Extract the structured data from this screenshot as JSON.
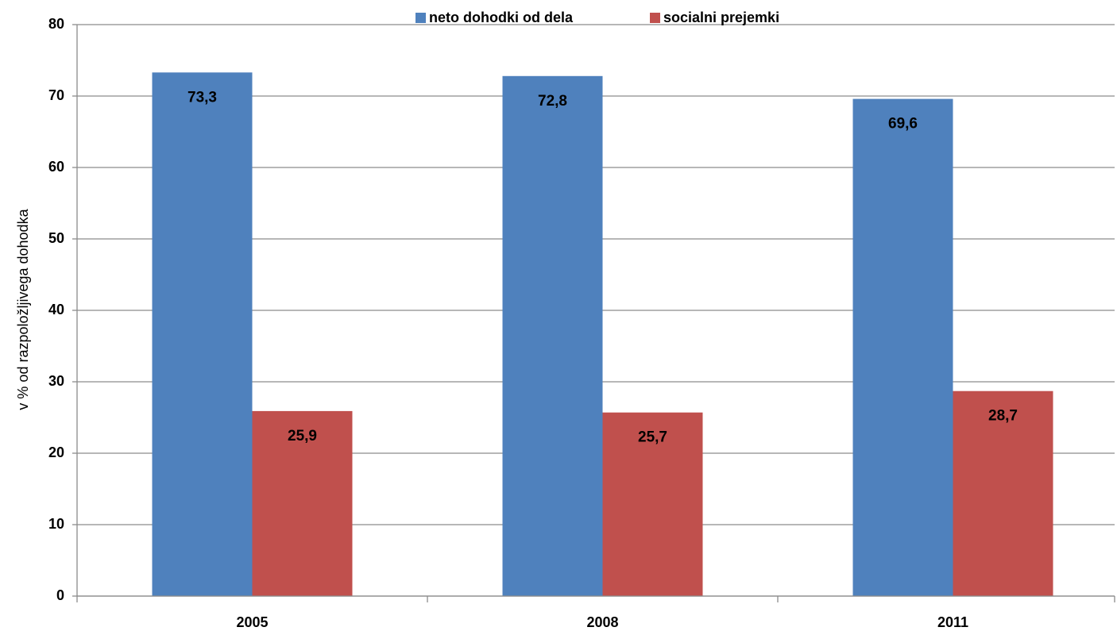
{
  "chart_data": {
    "type": "bar",
    "y_axis_label": "v % od razpoložljivega dohodka",
    "categories": [
      "2005",
      "2008",
      "2011"
    ],
    "series": [
      {
        "name": "neto dohodki od dela",
        "color": "#4f81bd",
        "values": [
          73.3,
          72.8,
          69.6
        ],
        "value_labels": [
          "73,3",
          "72,8",
          "69,6"
        ]
      },
      {
        "name": "socialni prejemki",
        "color": "#c0504d",
        "values": [
          25.9,
          25.7,
          28.7
        ],
        "value_labels": [
          "25,9",
          "25,7",
          "28,7"
        ]
      }
    ],
    "ylim": [
      0,
      80
    ],
    "yticks": [
      0,
      10,
      20,
      30,
      40,
      50,
      60,
      70,
      80
    ],
    "grid": true,
    "legend": "top"
  }
}
